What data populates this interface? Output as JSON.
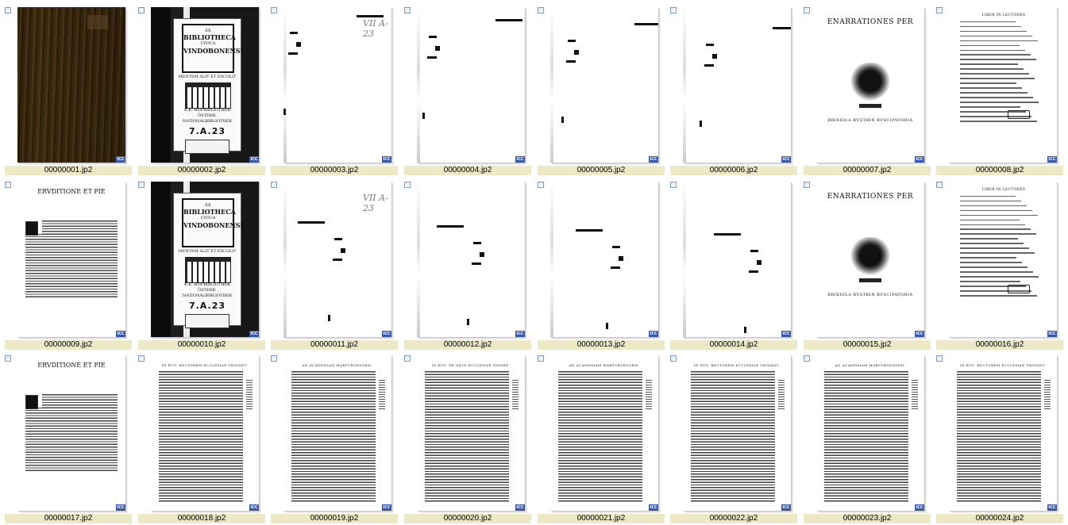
{
  "thumbnails": [
    {
      "filename": "00000001.jp2",
      "kind": "cover",
      "icc": "ICC",
      "selected": false
    },
    {
      "filename": "00000002.jp2",
      "kind": "bookplate",
      "icc": "ICC",
      "selected": false
    },
    {
      "filename": "00000003.jp2",
      "kind": "blank-signature",
      "icc": "ICC",
      "selected": false
    },
    {
      "filename": "00000004.jp2",
      "kind": "blank",
      "icc": "ICC",
      "selected": false
    },
    {
      "filename": "00000005.jp2",
      "kind": "blank",
      "icc": "ICC",
      "selected": false
    },
    {
      "filename": "00000006.jp2",
      "kind": "blank",
      "icc": "ICC",
      "selected": false
    },
    {
      "filename": "00000007.jp2",
      "kind": "title",
      "icc": "ICC",
      "selected": false
    },
    {
      "filename": "00000008.jp2",
      "kind": "verse",
      "icc": "ICC",
      "selected": false
    },
    {
      "filename": "00000009.jp2",
      "kind": "preface",
      "icc": "ICC",
      "selected": false
    },
    {
      "filename": "00000010.jp2",
      "kind": "bookplate",
      "icc": "ICC",
      "selected": false
    },
    {
      "filename": "00000011.jp2",
      "kind": "blank-signature",
      "icc": "ICC",
      "selected": false
    },
    {
      "filename": "00000012.jp2",
      "kind": "blank",
      "icc": "ICC",
      "selected": false
    },
    {
      "filename": "00000013.jp2",
      "kind": "blank",
      "icc": "ICC",
      "selected": false
    },
    {
      "filename": "00000014.jp2",
      "kind": "blank",
      "icc": "ICC",
      "selected": false
    },
    {
      "filename": "00000015.jp2",
      "kind": "title",
      "icc": "ICC",
      "selected": false
    },
    {
      "filename": "00000016.jp2",
      "kind": "verse",
      "icc": "ICC",
      "selected": false
    },
    {
      "filename": "00000017.jp2",
      "kind": "preface",
      "icc": "ICC",
      "selected": false
    },
    {
      "filename": "00000018.jp2",
      "kind": "text",
      "icc": "ICC",
      "selected": false
    },
    {
      "filename": "00000019.jp2",
      "kind": "text",
      "icc": "ICC",
      "selected": false
    },
    {
      "filename": "00000020.jp2",
      "kind": "text",
      "icc": "ICC",
      "selected": false
    },
    {
      "filename": "00000021.jp2",
      "kind": "text",
      "icc": "ICC",
      "selected": false
    },
    {
      "filename": "00000022.jp2",
      "kind": "text",
      "icc": "ICC",
      "selected": false
    },
    {
      "filename": "00000023.jp2",
      "kind": "text",
      "icc": "ICC",
      "selected": false
    },
    {
      "filename": "00000024.jp2",
      "kind": "text",
      "icc": "ICC",
      "selected": false
    }
  ],
  "bookplate": {
    "ex": "EX",
    "library_line1": "BIBLIOTHECA",
    "library_line2": "CIVICA",
    "library_line3": "VINDOBONENSI",
    "motto": "MENTEM ALIT ET EXCOLIT",
    "caption_line1": "K.K. HOFBIBLIOTHEK",
    "caption_line2": "ÖSTERR. NATIONALBIBLIOTHEK",
    "shelfmark": "7.A.23"
  },
  "signature_mark": "VII A-23",
  "title_page": {
    "title": "ENARRATIONES PER",
    "imprint": "BRIXIOLA BVSTRIN RVSCIPATORIA"
  },
  "verse_page": {
    "heading": "LIBER IN LECTORES"
  },
  "preface_page": {
    "title": "ERVDITIONE ET PIE"
  },
  "text_heads": [
    "IN EVG. RECTOREM ECCLESIAE VRINANT.",
    "AD ACADEMIAM MARPVRGENSEM.",
    "IN EVG. DE DEVS ECCLESIAE VRINEN.",
    "AD ACADEMIAM MARPVRGENSEM.",
    "IN EVG. RECTOREM ECCLESIAE VRINANT.",
    "AD ACADEMIAM MARPVRGENSEM.",
    "IN EVG. RECTOREM ECCLESIAE VRINANT."
  ]
}
